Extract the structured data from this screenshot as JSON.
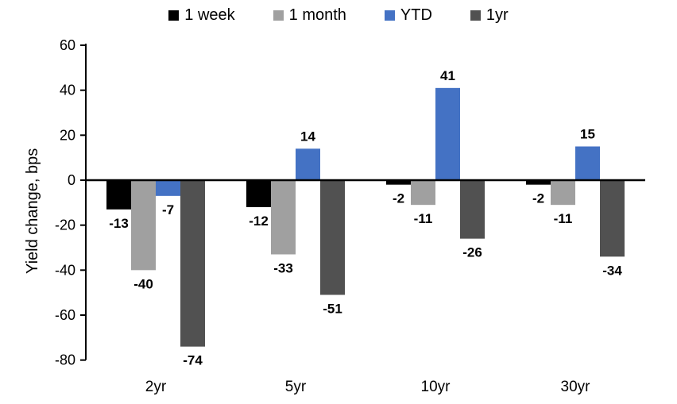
{
  "chart_data": {
    "type": "bar",
    "title": "",
    "ylabel": "Yield change, bps",
    "xlabel": "",
    "categories": [
      "2yr",
      "5yr",
      "10yr",
      "30yr"
    ],
    "series": [
      {
        "name": "1 week",
        "color": "#000000",
        "values": [
          -13,
          -12,
          -2,
          -2
        ]
      },
      {
        "name": "1 month",
        "color": "#a0a0a0",
        "values": [
          -40,
          -33,
          -11,
          -11
        ]
      },
      {
        "name": "YTD",
        "color": "#4472c4",
        "values": [
          -7,
          14,
          41,
          15
        ]
      },
      {
        "name": "1yr",
        "color": "#515151",
        "values": [
          -74,
          -51,
          -26,
          -34
        ]
      }
    ],
    "ylim": [
      -80,
      60
    ],
    "ytick_step": 20,
    "yticks": [
      60,
      40,
      20,
      0,
      -20,
      -40,
      -60,
      -80
    ],
    "legend_position": "top",
    "grid": "off",
    "data_labels": "on",
    "colors": {
      "axis": "#000000",
      "background": "#ffffff",
      "label_text": "#000000"
    }
  }
}
